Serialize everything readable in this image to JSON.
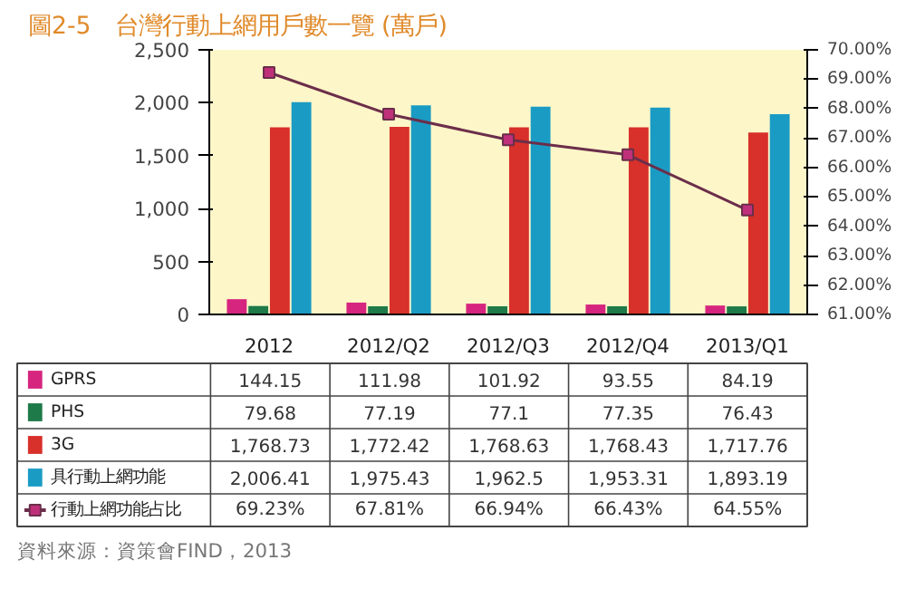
{
  "chart_data": {
    "type": "bar",
    "title": "圖2-5　台灣行動上網用戶數一覽 (萬戶)",
    "categories": [
      "2012",
      "2012/Q2",
      "2012/Q3",
      "2012/Q4",
      "2013/Q1"
    ],
    "series": [
      {
        "name": "GPRS",
        "color": "#d6257f",
        "values": [
          144.15,
          111.98,
          101.92,
          93.55,
          84.19
        ],
        "value_labels": [
          "144.15",
          "111.98",
          "101.92",
          "93.55",
          "84.19"
        ]
      },
      {
        "name": "PHS",
        "color": "#1e7a48",
        "values": [
          79.68,
          77.19,
          77.1,
          77.35,
          76.43
        ],
        "value_labels": [
          "79.68",
          "77.19",
          "77.1",
          "77.35",
          "76.43"
        ]
      },
      {
        "name": "3G",
        "color": "#d8302a",
        "values": [
          1768.73,
          1772.42,
          1768.63,
          1768.43,
          1717.76
        ],
        "value_labels": [
          "1,768.73",
          "1,772.42",
          "1,768.63",
          "1,768.43",
          "1,717.76"
        ]
      },
      {
        "name": "具行動上網功能",
        "color": "#1a9bc4",
        "values": [
          2006.41,
          1975.43,
          1962.5,
          1953.31,
          1893.19
        ],
        "value_labels": [
          "2,006.41",
          "1,975.43",
          "1,962.5",
          "1,953.31",
          "1,893.19"
        ]
      },
      {
        "name": "行動上網功能占比",
        "type": "line",
        "axis": "y2",
        "color": "#6b2e4a",
        "marker": "square",
        "values": [
          69.23,
          67.81,
          66.94,
          66.43,
          64.55
        ],
        "value_labels": [
          "69.23%",
          "67.81%",
          "66.94%",
          "66.43%",
          "64.55%"
        ]
      }
    ],
    "ylim": [
      0,
      2500
    ],
    "yticks": [
      0,
      {
        "value": 500,
        "label": "500"
      },
      {
        "value": 1000,
        "label": "1,000"
      },
      {
        "value": 1500,
        "label": "1,500"
      },
      {
        "value": 2000,
        "label": "2,000"
      },
      {
        "value": 2500,
        "label": "2,500"
      }
    ],
    "y2lim": [
      61,
      70
    ],
    "y2ticks": [
      {
        "value": 61,
        "label": "61.00%"
      },
      {
        "value": 62,
        "label": "62.00%"
      },
      {
        "value": 63,
        "label": "63.00%"
      },
      {
        "value": 64,
        "label": "64.00%"
      },
      {
        "value": 65,
        "label": "65.00%"
      },
      {
        "value": 66,
        "label": "66.00%"
      },
      {
        "value": 67,
        "label": "67.00%"
      },
      {
        "value": 68,
        "label": "68.00%"
      },
      {
        "value": 69,
        "label": "69.00%"
      },
      {
        "value": 70,
        "label": "70.00%"
      }
    ],
    "legend": "bottom",
    "annotations": [
      "資料來源：資策會FIND，2013"
    ]
  }
}
